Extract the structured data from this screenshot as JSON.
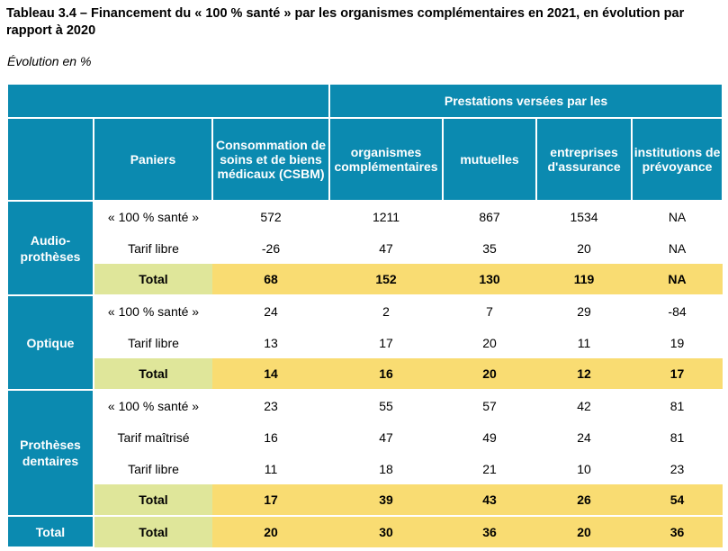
{
  "title": "Tableau 3.4 – Financement du « 100 % santé » par les organismes complémentaires en 2021, en évolution par rapport à 2020",
  "subtitle": "Évolution en %",
  "headers": {
    "paniers": "Paniers",
    "csbm": "Consommation de soins et de biens médicaux (CSBM)",
    "prestations_group": "Prestations versées par les",
    "cols": [
      "organismes complémentaires",
      "mutuelles",
      "entreprises d'assurance",
      "institutions de prévoyance"
    ]
  },
  "groups": [
    {
      "name": "Audio-prothèses",
      "rows": [
        {
          "label": "« 100 % santé »",
          "values": [
            "572",
            "1211",
            "867",
            "1534",
            "NA"
          ],
          "total": false
        },
        {
          "label": "Tarif libre",
          "values": [
            "-26",
            "47",
            "35",
            "20",
            "NA"
          ],
          "total": false
        },
        {
          "label": "Total",
          "values": [
            "68",
            "152",
            "130",
            "119",
            "NA"
          ],
          "total": true
        }
      ]
    },
    {
      "name": "Optique",
      "rows": [
        {
          "label": "« 100 % santé »",
          "values": [
            "24",
            "2",
            "7",
            "29",
            "-84"
          ],
          "total": false
        },
        {
          "label": "Tarif libre",
          "values": [
            "13",
            "17",
            "20",
            "11",
            "19"
          ],
          "total": false
        },
        {
          "label": "Total",
          "values": [
            "14",
            "16",
            "20",
            "12",
            "17"
          ],
          "total": true
        }
      ]
    },
    {
      "name": "Prothèses dentaires",
      "rows": [
        {
          "label": "« 100 % santé »",
          "values": [
            "23",
            "55",
            "57",
            "42",
            "81"
          ],
          "total": false
        },
        {
          "label": "Tarif maîtrisé",
          "values": [
            "16",
            "47",
            "49",
            "24",
            "81"
          ],
          "total": false
        },
        {
          "label": "Tarif libre",
          "values": [
            "11",
            "18",
            "21",
            "10",
            "23"
          ],
          "total": false
        },
        {
          "label": "Total",
          "values": [
            "17",
            "39",
            "43",
            "26",
            "54"
          ],
          "total": true
        }
      ]
    },
    {
      "name": "Total",
      "rows": [
        {
          "label": "Total",
          "values": [
            "20",
            "30",
            "36",
            "20",
            "36"
          ],
          "total": true
        }
      ]
    }
  ]
}
